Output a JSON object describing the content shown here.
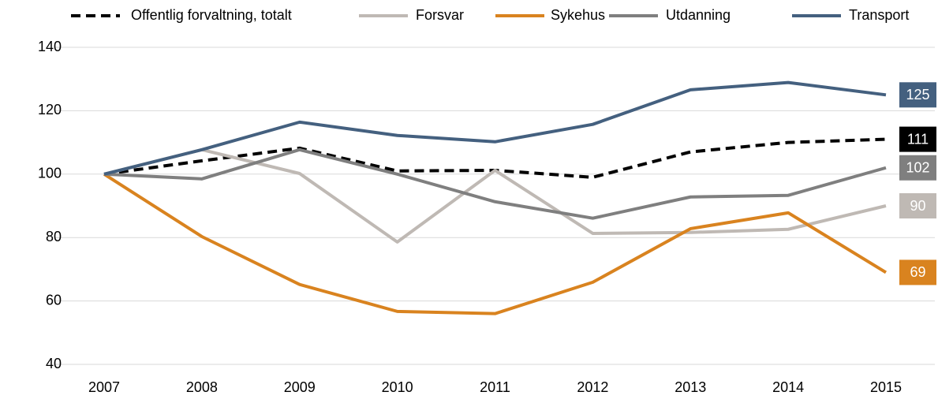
{
  "chart_data": {
    "type": "line",
    "categories": [
      "2007",
      "2008",
      "2009",
      "2010",
      "2011",
      "2012",
      "2013",
      "2014",
      "2015"
    ],
    "series": [
      {
        "name": "Offentlig forvaltning, totalt",
        "color": "#000000",
        "dashed": true,
        "values": [
          100,
          104.2,
          108.2,
          101,
          101.2,
          99,
          107,
          110,
          111
        ]
      },
      {
        "name": "Forsvar",
        "color": "#bfb9b4",
        "values": [
          100,
          107.7,
          100.2,
          78.6,
          101.2,
          81.3,
          81.6,
          82.6,
          90
        ]
      },
      {
        "name": "Sykehus",
        "color": "#d9831f",
        "values": [
          100,
          80.3,
          65.2,
          56.7,
          56,
          65.9,
          82.8,
          87.8,
          69
        ]
      },
      {
        "name": "Utdanning",
        "color": "#7f7f7f",
        "values": [
          100,
          98.5,
          107.7,
          100,
          91.3,
          86.1,
          92.8,
          93.3,
          102
        ]
      },
      {
        "name": "Transport",
        "color": "#44607f",
        "values": [
          100,
          107.7,
          116.4,
          112.2,
          110.2,
          115.7,
          126.6,
          128.9,
          125
        ]
      }
    ],
    "ylim": [
      40,
      140
    ],
    "yticks": [
      40,
      60,
      80,
      100,
      120,
      140
    ],
    "grid": true,
    "legend": "top"
  }
}
